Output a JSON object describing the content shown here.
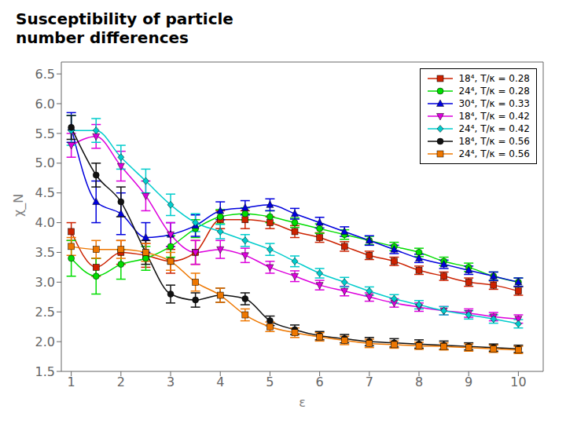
{
  "chart_data": {
    "type": "line",
    "title": "Susceptibility of particle\nnumber differences",
    "xlabel": "ε",
    "ylabel": "χ_N",
    "xlim": [
      0.8,
      10.5
    ],
    "ylim": [
      1.5,
      6.7
    ],
    "xticks": [
      1,
      2,
      3,
      4,
      5,
      6,
      7,
      8,
      9,
      10
    ],
    "yticks": [
      1.5,
      {
        "value": 2.0,
        "label": "2.0"
      },
      2.5,
      {
        "value": 3.0,
        "label": "3.0"
      },
      3.5,
      {
        "value": 4.0,
        "label": "4.0"
      },
      4.5,
      {
        "value": 5.0,
        "label": "5.0"
      },
      5.5,
      {
        "value": 6.0,
        "label": "6.0"
      },
      6.5
    ],
    "grid": false,
    "legend": "upper right",
    "x": [
      1.0,
      1.5,
      2.0,
      2.5,
      3.0,
      3.5,
      4.0,
      4.5,
      5.0,
      5.5,
      6.0,
      6.5,
      7.0,
      7.5,
      8.0,
      8.5,
      9.0,
      9.5,
      10.0
    ],
    "series": [
      {
        "name": "18⁴, T/κ = 0.28",
        "color": "#cc2200",
        "marker": "square",
        "values": [
          3.85,
          3.25,
          3.5,
          3.45,
          3.35,
          3.5,
          4.05,
          4.05,
          4.0,
          3.85,
          3.75,
          3.6,
          3.45,
          3.35,
          3.2,
          3.1,
          3.0,
          2.95,
          2.85
        ],
        "yerr": [
          0.15,
          0.15,
          0.2,
          0.2,
          0.2,
          0.2,
          0.15,
          0.15,
          0.1,
          0.1,
          0.08,
          0.08,
          0.07,
          0.07,
          0.07,
          0.07,
          0.07,
          0.07,
          0.07
        ]
      },
      {
        "name": "24⁴, T/κ = 0.28",
        "color": "#00dd00",
        "marker": "circle",
        "values": [
          3.4,
          3.1,
          3.3,
          3.4,
          3.6,
          3.9,
          4.1,
          4.15,
          4.1,
          4.0,
          3.9,
          3.8,
          3.7,
          3.6,
          3.5,
          3.35,
          3.25,
          3.1,
          3.0
        ],
        "yerr": [
          0.3,
          0.3,
          0.25,
          0.2,
          0.18,
          0.15,
          0.12,
          0.1,
          0.1,
          0.08,
          0.08,
          0.08,
          0.07,
          0.07,
          0.07,
          0.07,
          0.07,
          0.07,
          0.07
        ]
      },
      {
        "name": "30⁴, T/κ = 0.33",
        "color": "#0000dd",
        "marker": "triangle-up",
        "values": [
          5.6,
          4.35,
          4.15,
          3.75,
          3.8,
          3.95,
          4.2,
          4.25,
          4.3,
          4.15,
          4.0,
          3.85,
          3.7,
          3.55,
          3.4,
          3.3,
          3.2,
          3.1,
          3.0
        ],
        "yerr": [
          0.25,
          0.35,
          0.35,
          0.25,
          0.2,
          0.18,
          0.15,
          0.12,
          0.1,
          0.09,
          0.09,
          0.08,
          0.08,
          0.07,
          0.07,
          0.07,
          0.07,
          0.07,
          0.07
        ]
      },
      {
        "name": "18⁴, T/κ = 0.42",
        "color": "#dd00dd",
        "marker": "triangle-down",
        "values": [
          5.3,
          5.45,
          4.95,
          4.45,
          3.8,
          3.5,
          3.55,
          3.45,
          3.25,
          3.1,
          2.95,
          2.85,
          2.75,
          2.65,
          2.58,
          2.52,
          2.48,
          2.42,
          2.38
        ],
        "yerr": [
          0.2,
          0.2,
          0.25,
          0.25,
          0.2,
          0.2,
          0.15,
          0.12,
          0.1,
          0.09,
          0.08,
          0.08,
          0.07,
          0.07,
          0.07,
          0.07,
          0.07,
          0.07,
          0.07
        ]
      },
      {
        "name": "24⁴, T/κ = 0.42",
        "color": "#00cccc",
        "marker": "diamond",
        "values": [
          5.55,
          5.55,
          5.1,
          4.7,
          4.3,
          4.0,
          3.85,
          3.7,
          3.55,
          3.35,
          3.15,
          3.0,
          2.85,
          2.72,
          2.62,
          2.52,
          2.45,
          2.38,
          2.3
        ],
        "yerr": [
          0.25,
          0.2,
          0.2,
          0.2,
          0.18,
          0.15,
          0.12,
          0.1,
          0.1,
          0.09,
          0.08,
          0.08,
          0.07,
          0.07,
          0.07,
          0.07,
          0.07,
          0.07,
          0.07
        ]
      },
      {
        "name": "18⁴, T/κ = 0.56",
        "color": "#111111",
        "marker": "circle",
        "values": [
          5.6,
          4.8,
          4.35,
          3.5,
          2.8,
          2.7,
          2.78,
          2.72,
          2.35,
          2.2,
          2.1,
          2.05,
          2.0,
          1.98,
          1.96,
          1.94,
          1.92,
          1.9,
          1.88
        ],
        "yerr": [
          0.2,
          0.2,
          0.25,
          0.2,
          0.15,
          0.12,
          0.12,
          0.1,
          0.08,
          0.08,
          0.07,
          0.07,
          0.07,
          0.07,
          0.07,
          0.07,
          0.06,
          0.06,
          0.06
        ]
      },
      {
        "name": "24⁴, T/κ = 0.56",
        "color": "#ee7700",
        "marker": "square",
        "values": [
          3.6,
          3.55,
          3.55,
          3.5,
          3.35,
          3.0,
          2.78,
          2.45,
          2.25,
          2.15,
          2.08,
          2.02,
          1.97,
          1.95,
          1.93,
          1.92,
          1.9,
          1.88,
          1.86
        ],
        "yerr": [
          0.15,
          0.15,
          0.15,
          0.15,
          0.15,
          0.15,
          0.12,
          0.1,
          0.08,
          0.08,
          0.07,
          0.07,
          0.07,
          0.06,
          0.06,
          0.06,
          0.06,
          0.06,
          0.06
        ]
      }
    ]
  }
}
